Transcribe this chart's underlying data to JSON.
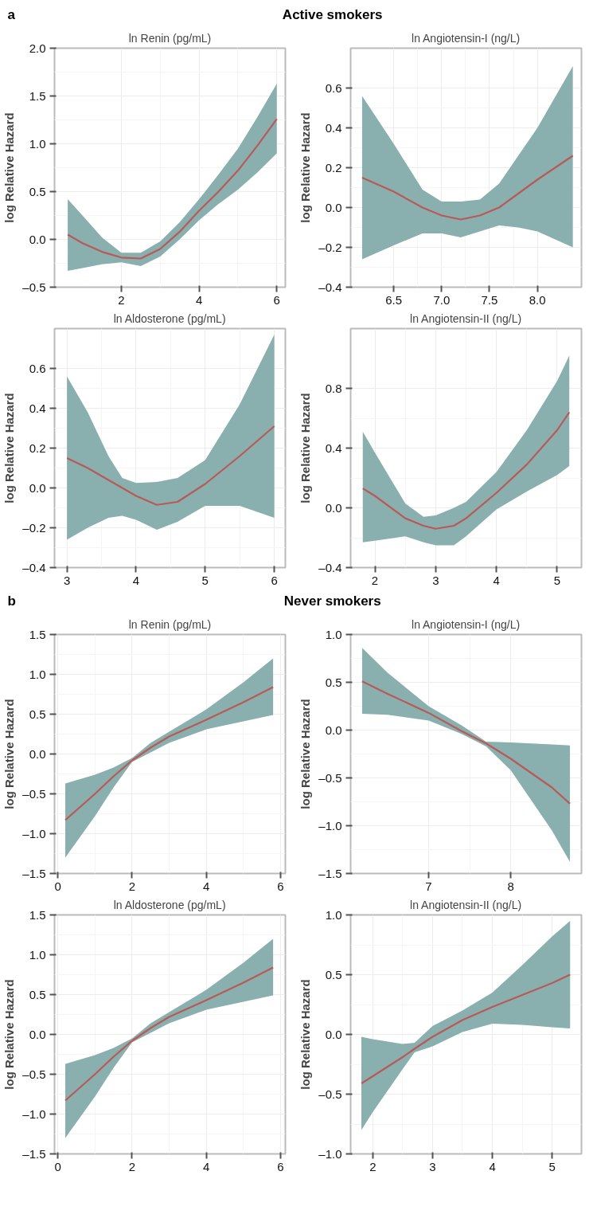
{
  "chart_data": [
    {
      "type": "line",
      "annotations": [
        "a",
        "Active smokers"
      ],
      "title": "ln Renin (pg/mL)",
      "ylabel": "log Relative Hazard",
      "grid": true,
      "xlim": [
        0.28,
        6.22
      ],
      "ylim": [
        -0.5,
        2.0
      ],
      "xticks": [
        2,
        4,
        6
      ],
      "yticks": [
        {
          "value": -0.5,
          "label": "–0.5"
        },
        {
          "value": 0,
          "label": "0.0"
        },
        {
          "value": 0.5,
          "label": "0.5"
        },
        {
          "value": 1,
          "label": "1.0"
        },
        {
          "value": 1.5,
          "label": "1.5"
        },
        {
          "value": 2,
          "label": "2.0"
        }
      ],
      "x": [
        0.62,
        1.0,
        1.5,
        2.0,
        2.5,
        3.0,
        3.5,
        4.0,
        4.5,
        5.0,
        5.5,
        6.0
      ],
      "series": [
        {
          "color": "#b85a58",
          "values": [
            0.05,
            -0.04,
            -0.13,
            -0.19,
            -0.2,
            -0.1,
            0.08,
            0.3,
            0.5,
            0.72,
            0.98,
            1.26
          ],
          "lower": [
            -0.33,
            -0.3,
            -0.26,
            -0.24,
            -0.28,
            -0.18,
            0.0,
            0.2,
            0.37,
            0.52,
            0.7,
            0.9
          ],
          "upper": [
            0.42,
            0.25,
            0.02,
            -0.14,
            -0.14,
            -0.02,
            0.18,
            0.42,
            0.68,
            0.95,
            1.28,
            1.63
          ]
        }
      ]
    },
    {
      "type": "line",
      "title": "ln Angiotensin-I (ng/L)",
      "ylabel": "log Relative Hazard",
      "grid": true,
      "xlim": [
        6.05,
        8.46
      ],
      "ylim": [
        -0.4,
        0.8
      ],
      "xticks": [
        6.5,
        {
          "value": 7,
          "label": "7.0"
        },
        7.5,
        {
          "value": 8,
          "label": "8.0"
        }
      ],
      "yticks": [
        {
          "value": -0.4,
          "label": "–0.4"
        },
        {
          "value": -0.2,
          "label": "–0.2"
        },
        {
          "value": 0,
          "label": "0.0"
        },
        {
          "value": 0.2,
          "label": "0.2"
        },
        {
          "value": 0.4,
          "label": "0.4"
        },
        {
          "value": 0.6,
          "label": "0.6"
        }
      ],
      "x": [
        6.17,
        6.5,
        6.8,
        7.0,
        7.2,
        7.4,
        7.6,
        7.8,
        8.0,
        8.37
      ],
      "series": [
        {
          "color": "#b85a58",
          "values": [
            0.15,
            0.08,
            0.0,
            -0.04,
            -0.06,
            -0.04,
            0.0,
            0.07,
            0.14,
            0.26
          ],
          "lower": [
            -0.26,
            -0.19,
            -0.13,
            -0.13,
            -0.15,
            -0.12,
            -0.09,
            -0.1,
            -0.12,
            -0.2
          ],
          "upper": [
            0.56,
            0.32,
            0.09,
            0.03,
            0.03,
            0.04,
            0.12,
            0.26,
            0.4,
            0.71
          ]
        }
      ]
    },
    {
      "type": "line",
      "title": "ln Aldosterone (pg/mL)",
      "ylabel": "log Relative Hazard",
      "grid": true,
      "xlim": [
        2.82,
        6.16
      ],
      "ylim": [
        -0.4,
        0.8
      ],
      "xticks": [
        3,
        4,
        5,
        6
      ],
      "yticks": [
        {
          "value": -0.4,
          "label": "–0.4"
        },
        {
          "value": -0.2,
          "label": "–0.2"
        },
        {
          "value": 0,
          "label": "0.0"
        },
        {
          "value": 0.2,
          "label": "0.2"
        },
        {
          "value": 0.4,
          "label": "0.4"
        },
        {
          "value": 0.6,
          "label": "0.6"
        }
      ],
      "x": [
        3.0,
        3.3,
        3.6,
        3.8,
        4.0,
        4.3,
        4.6,
        5.0,
        5.5,
        6.0
      ],
      "series": [
        {
          "color": "#b85a58",
          "values": [
            0.15,
            0.1,
            0.04,
            0.0,
            -0.04,
            -0.085,
            -0.07,
            0.02,
            0.16,
            0.31
          ],
          "lower": [
            -0.26,
            -0.2,
            -0.15,
            -0.14,
            -0.16,
            -0.21,
            -0.17,
            -0.09,
            -0.09,
            -0.15
          ],
          "upper": [
            0.56,
            0.38,
            0.16,
            0.05,
            0.025,
            0.03,
            0.05,
            0.14,
            0.42,
            0.77
          ]
        }
      ]
    },
    {
      "type": "line",
      "title": "ln Angiotensin-II (ng/L)",
      "ylabel": "log Relative Hazard",
      "grid": true,
      "xlim": [
        1.6,
        5.4
      ],
      "ylim": [
        -0.4,
        1.2
      ],
      "xticks": [
        2,
        3,
        4,
        5
      ],
      "yticks": [
        {
          "value": -0.4,
          "label": "–0.4"
        },
        {
          "value": 0,
          "label": "0.0"
        },
        {
          "value": 0.4,
          "label": "0.4"
        },
        {
          "value": 0.8,
          "label": "0.8"
        }
      ],
      "x": [
        1.8,
        2.0,
        2.5,
        2.8,
        3.0,
        3.3,
        3.5,
        4.0,
        4.5,
        5.0,
        5.2
      ],
      "series": [
        {
          "color": "#b85a58",
          "values": [
            0.13,
            0.08,
            -0.07,
            -0.12,
            -0.14,
            -0.12,
            -0.07,
            0.1,
            0.29,
            0.52,
            0.64
          ],
          "lower": [
            -0.23,
            -0.22,
            -0.19,
            -0.23,
            -0.25,
            -0.25,
            -0.19,
            -0.01,
            0.11,
            0.22,
            0.28
          ],
          "upper": [
            0.51,
            0.37,
            0.03,
            -0.06,
            -0.05,
            0.0,
            0.04,
            0.24,
            0.52,
            0.85,
            1.02
          ]
        }
      ]
    },
    {
      "type": "line",
      "annotations": [
        "b",
        "Never smokers"
      ],
      "title": "ln Renin (pg/mL)",
      "ylabel": "log Relative Hazard",
      "grid": true,
      "xlim": [
        -0.09,
        6.13
      ],
      "ylim": [
        -1.5,
        1.5
      ],
      "xticks": [
        0,
        2,
        4,
        6
      ],
      "yticks": [
        {
          "value": -1.5,
          "label": "–1.5"
        },
        {
          "value": -1,
          "label": "–1.0"
        },
        {
          "value": -0.5,
          "label": "–0.5"
        },
        {
          "value": 0,
          "label": "0.0"
        },
        {
          "value": 0.5,
          "label": "0.5"
        },
        {
          "value": 1,
          "label": "1.0"
        },
        {
          "value": 1.5,
          "label": "1.5"
        }
      ],
      "x": [
        0.2,
        1.0,
        1.5,
        2.0,
        2.5,
        3.0,
        4.0,
        5.0,
        5.8
      ],
      "series": [
        {
          "color": "#b85a58",
          "values": [
            -0.83,
            -0.5,
            -0.28,
            -0.08,
            0.08,
            0.22,
            0.43,
            0.65,
            0.84
          ],
          "lower": [
            -1.3,
            -0.78,
            -0.42,
            -0.1,
            0.02,
            0.14,
            0.31,
            0.41,
            0.49
          ],
          "upper": [
            -0.37,
            -0.26,
            -0.17,
            -0.05,
            0.14,
            0.28,
            0.56,
            0.9,
            1.2
          ]
        }
      ]
    },
    {
      "type": "line",
      "title": "ln Angiotensin-I (ng/L)",
      "ylabel": "log Relative Hazard",
      "grid": true,
      "xlim": [
        6.05,
        8.86
      ],
      "ylim": [
        -1.5,
        1.0
      ],
      "xticks": [
        7,
        8
      ],
      "yticks": [
        {
          "value": -1.5,
          "label": "–1.5"
        },
        {
          "value": -1,
          "label": "–1.0"
        },
        {
          "value": -0.5,
          "label": "–0.5"
        },
        {
          "value": 0,
          "label": "0.0"
        },
        {
          "value": 0.5,
          "label": "0.5"
        },
        {
          "value": 1,
          "label": "1.0"
        }
      ],
      "x": [
        6.19,
        6.5,
        7.0,
        7.4,
        7.7,
        8.0,
        8.5,
        8.72
      ],
      "series": [
        {
          "color": "#b85a58",
          "values": [
            0.51,
            0.38,
            0.18,
            -0.01,
            -0.14,
            -0.3,
            -0.6,
            -0.77
          ],
          "lower": [
            0.17,
            0.16,
            0.1,
            -0.04,
            -0.17,
            -0.42,
            -1.05,
            -1.38
          ],
          "upper": [
            0.86,
            0.6,
            0.25,
            0.05,
            -0.12,
            -0.13,
            -0.15,
            -0.16
          ]
        }
      ]
    },
    {
      "type": "line",
      "title": "ln Aldosterone (pg/mL)",
      "ylabel": "log Relative Hazard",
      "grid": true,
      "xlim": [
        -0.09,
        6.13
      ],
      "ylim": [
        -1.5,
        1.5
      ],
      "xticks": [
        0,
        2,
        4,
        6
      ],
      "yticks": [
        {
          "value": -1.5,
          "label": "–1.5"
        },
        {
          "value": -1,
          "label": "–1.0"
        },
        {
          "value": -0.5,
          "label": "–0.5"
        },
        {
          "value": 0,
          "label": "0.0"
        },
        {
          "value": 0.5,
          "label": "0.5"
        },
        {
          "value": 1,
          "label": "1.0"
        },
        {
          "value": 1.5,
          "label": "1.5"
        }
      ],
      "x": [
        0.2,
        1.0,
        1.5,
        2.0,
        2.5,
        3.0,
        4.0,
        5.0,
        5.8
      ],
      "series": [
        {
          "color": "#b85a58",
          "values": [
            -0.83,
            -0.5,
            -0.28,
            -0.08,
            0.08,
            0.22,
            0.43,
            0.65,
            0.84
          ],
          "lower": [
            -1.3,
            -0.78,
            -0.42,
            -0.1,
            0.02,
            0.14,
            0.31,
            0.41,
            0.49
          ],
          "upper": [
            -0.37,
            -0.26,
            -0.17,
            -0.05,
            0.14,
            0.28,
            0.56,
            0.9,
            1.2
          ]
        }
      ]
    },
    {
      "type": "line",
      "title": "ln Angiotensin-II (ng/L)",
      "ylabel": "log Relative Hazard",
      "grid": true,
      "xlim": [
        1.63,
        5.49
      ],
      "ylim": [
        -1.0,
        1.0
      ],
      "xticks": [
        2,
        3,
        4,
        5
      ],
      "yticks": [
        {
          "value": -1,
          "label": "–1.0"
        },
        {
          "value": -0.5,
          "label": "–0.5"
        },
        {
          "value": 0,
          "label": "0.0"
        },
        {
          "value": 0.5,
          "label": "0.5"
        },
        {
          "value": 1,
          "label": "1.0"
        }
      ],
      "x": [
        1.81,
        2.0,
        2.5,
        2.7,
        3.0,
        3.5,
        4.0,
        4.5,
        5.0,
        5.3
      ],
      "series": [
        {
          "color": "#b85a58",
          "values": [
            -0.41,
            -0.35,
            -0.19,
            -0.12,
            -0.02,
            0.12,
            0.23,
            0.33,
            0.43,
            0.5
          ],
          "lower": [
            -0.8,
            -0.65,
            -0.29,
            -0.15,
            -0.1,
            0.02,
            0.09,
            0.08,
            0.06,
            0.05
          ],
          "upper": [
            -0.02,
            -0.04,
            -0.08,
            -0.07,
            0.07,
            0.2,
            0.35,
            0.58,
            0.82,
            0.95
          ]
        }
      ]
    }
  ]
}
